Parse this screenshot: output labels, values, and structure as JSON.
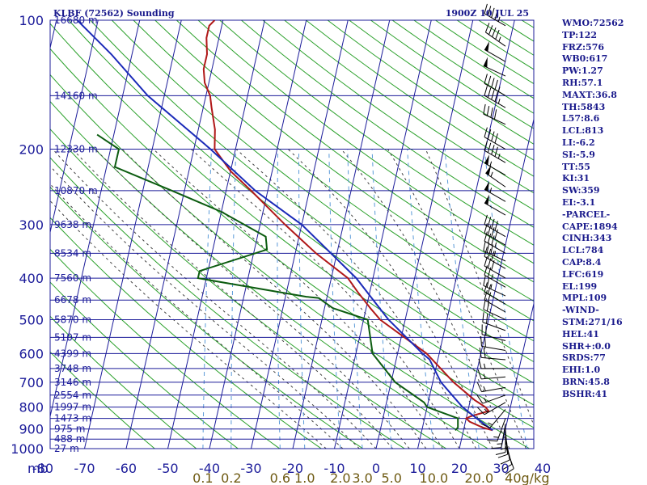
{
  "header": {
    "station": "KLBF (72562) Sounding",
    "time": "1900Z 10 JUL 25"
  },
  "chart_data": {
    "type": "skew-t",
    "title": "KLBF (72562) Sounding",
    "xlabel": "mb",
    "ylabel": "",
    "pressure_ticks": [
      "100",
      "200",
      "300",
      "400",
      "500",
      "600",
      "700",
      "800",
      "900",
      "1000"
    ],
    "pressure_values": [
      100,
      200,
      300,
      400,
      500,
      600,
      700,
      800,
      900,
      1000
    ],
    "temperature_ticks": [
      "-80",
      "-70",
      "-60",
      "-50",
      "-40",
      "-30",
      "-20",
      "-10",
      "0",
      "10",
      "20",
      "30",
      "40"
    ],
    "temperature_values": [
      -80,
      -70,
      -60,
      -50,
      -40,
      -30,
      -20,
      -10,
      0,
      10,
      20,
      30,
      40
    ],
    "mixing_ratio_labels": [
      "0.1",
      "0.2",
      "0.6",
      "1.0",
      "2.0",
      "3.0",
      "5.0",
      "10.0",
      "20.0",
      "40g/kg"
    ],
    "mixing_ratio_values": [
      0.1,
      0.2,
      0.6,
      1.0,
      2.0,
      3.0,
      5.0,
      10.0,
      20.0,
      40.0
    ],
    "height_labels": [
      {
        "p": 100,
        "label": "16680 m"
      },
      {
        "p": 150,
        "label": "14160 m"
      },
      {
        "p": 200,
        "label": "12330 m"
      },
      {
        "p": 250,
        "label": "10870 m"
      },
      {
        "p": 300,
        "label": "9638 m"
      },
      {
        "p": 350,
        "label": "8534 m"
      },
      {
        "p": 400,
        "label": "7560 m"
      },
      {
        "p": 450,
        "label": "6678 m"
      },
      {
        "p": 500,
        "label": "5870 m"
      },
      {
        "p": 550,
        "label": "5107 m"
      },
      {
        "p": 600,
        "label": "4399 m"
      },
      {
        "p": 650,
        "label": "3748 m"
      },
      {
        "p": 700,
        "label": "3146 m"
      },
      {
        "p": 750,
        "label": "2554 m"
      },
      {
        "p": 800,
        "label": "1997 m"
      },
      {
        "p": 850,
        "label": "1473 m"
      },
      {
        "p": 900,
        "label": "975 m"
      },
      {
        "p": 950,
        "label": "488 m"
      },
      {
        "p": 1000,
        "label": "27 m"
      }
    ],
    "series": [
      {
        "name": "",
        "color": "#b01818",
        "points": [
          {
            "p": 906,
            "t": 27
          },
          {
            "p": 893,
            "t": 24.5
          },
          {
            "p": 865,
            "t": 21
          },
          {
            "p": 850,
            "t": 20
          },
          {
            "p": 840,
            "t": 21
          },
          {
            "p": 817,
            "t": 25
          },
          {
            "p": 800,
            "t": 24
          },
          {
            "p": 770,
            "t": 21
          },
          {
            "p": 700,
            "t": 15
          },
          {
            "p": 600,
            "t": 7
          },
          {
            "p": 500,
            "t": -6
          },
          {
            "p": 470,
            "t": -9
          },
          {
            "p": 430,
            "t": -13
          },
          {
            "p": 400,
            "t": -16
          },
          {
            "p": 350,
            "t": -25
          },
          {
            "p": 300,
            "t": -34
          },
          {
            "p": 250,
            "t": -44
          },
          {
            "p": 225,
            "t": -50
          },
          {
            "p": 200,
            "t": -55
          },
          {
            "p": 180,
            "t": -56
          },
          {
            "p": 160,
            "t": -58
          },
          {
            "p": 150,
            "t": -59
          },
          {
            "p": 140,
            "t": -61
          },
          {
            "p": 130,
            "t": -62
          },
          {
            "p": 120,
            "t": -62
          },
          {
            "p": 110,
            "t": -63
          },
          {
            "p": 103,
            "t": -63
          },
          {
            "p": 100,
            "t": -62
          }
        ]
      },
      {
        "name": "",
        "color": "#0c5c10",
        "points": [
          {
            "p": 906,
            "t": 18
          },
          {
            "p": 893,
            "t": 18.5
          },
          {
            "p": 850,
            "t": 18
          },
          {
            "p": 800,
            "t": 10
          },
          {
            "p": 780,
            "t": 9
          },
          {
            "p": 700,
            "t": 1
          },
          {
            "p": 600,
            "t": -6
          },
          {
            "p": 500,
            "t": -9
          },
          {
            "p": 470,
            "t": -18
          },
          {
            "p": 445,
            "t": -22
          },
          {
            "p": 442,
            "t": -25
          },
          {
            "p": 400,
            "t": -52
          },
          {
            "p": 385,
            "t": -52
          },
          {
            "p": 343,
            "t": -37
          },
          {
            "p": 320,
            "t": -38
          },
          {
            "p": 280,
            "t": -50
          },
          {
            "p": 250,
            "t": -63
          },
          {
            "p": 220,
            "t": -78
          },
          {
            "p": 200,
            "t": -78
          },
          {
            "p": 185,
            "t": -84
          }
        ]
      },
      {
        "name": "",
        "color": "#1a2ab8",
        "points": [
          {
            "p": 906,
            "t": 27
          },
          {
            "p": 850,
            "t": 22.5
          },
          {
            "p": 800,
            "t": 18.5
          },
          {
            "p": 700,
            "t": 12
          },
          {
            "p": 619,
            "t": 8
          },
          {
            "p": 600,
            "t": 6
          },
          {
            "p": 500,
            "t": -4
          },
          {
            "p": 400,
            "t": -14
          },
          {
            "p": 300,
            "t": -30
          },
          {
            "p": 250,
            "t": -43
          },
          {
            "p": 200,
            "t": -56
          },
          {
            "p": 150,
            "t": -74
          },
          {
            "p": 120,
            "t": -85
          },
          {
            "p": 100,
            "t": -95
          }
        ]
      }
    ],
    "wind_barbs": [
      {
        "p": 103,
        "dir": 300,
        "spd": 45
      },
      {
        "p": 115,
        "dir": 305,
        "spd": 45
      },
      {
        "p": 125,
        "dir": 300,
        "spd": 50
      },
      {
        "p": 135,
        "dir": 295,
        "spd": 50
      },
      {
        "p": 150,
        "dir": 300,
        "spd": 45
      },
      {
        "p": 160,
        "dir": 300,
        "spd": 45
      },
      {
        "p": 175,
        "dir": 295,
        "spd": 40
      },
      {
        "p": 200,
        "dir": 300,
        "spd": 40
      },
      {
        "p": 215,
        "dir": 300,
        "spd": 45
      },
      {
        "p": 230,
        "dir": 300,
        "spd": 55
      },
      {
        "p": 245,
        "dir": 305,
        "spd": 55
      },
      {
        "p": 265,
        "dir": 300,
        "spd": 55
      },
      {
        "p": 285,
        "dir": 300,
        "spd": 50
      },
      {
        "p": 320,
        "dir": 300,
        "spd": 40
      },
      {
        "p": 335,
        "dir": 300,
        "spd": 40
      },
      {
        "p": 350,
        "dir": 300,
        "spd": 35
      },
      {
        "p": 365,
        "dir": 295,
        "spd": 35
      },
      {
        "p": 380,
        "dir": 300,
        "spd": 30
      },
      {
        "p": 400,
        "dir": 300,
        "spd": 30
      },
      {
        "p": 420,
        "dir": 300,
        "spd": 25
      },
      {
        "p": 440,
        "dir": 295,
        "spd": 25
      },
      {
        "p": 460,
        "dir": 300,
        "spd": 20
      },
      {
        "p": 480,
        "dir": 300,
        "spd": 20
      },
      {
        "p": 500,
        "dir": 295,
        "spd": 20
      },
      {
        "p": 530,
        "dir": 290,
        "spd": 20
      },
      {
        "p": 560,
        "dir": 285,
        "spd": 20
      },
      {
        "p": 590,
        "dir": 280,
        "spd": 20
      },
      {
        "p": 620,
        "dir": 275,
        "spd": 20
      },
      {
        "p": 650,
        "dir": 270,
        "spd": 15
      },
      {
        "p": 680,
        "dir": 265,
        "spd": 15
      },
      {
        "p": 720,
        "dir": 260,
        "spd": 15
      },
      {
        "p": 750,
        "dir": 250,
        "spd": 15
      },
      {
        "p": 780,
        "dir": 240,
        "spd": 15
      },
      {
        "p": 810,
        "dir": 220,
        "spd": 15
      },
      {
        "p": 850,
        "dir": 200,
        "spd": 15
      },
      {
        "p": 875,
        "dir": 190,
        "spd": 15
      },
      {
        "p": 895,
        "dir": 180,
        "spd": 15
      },
      {
        "p": 906,
        "dir": 175,
        "spd": 10
      },
      {
        "p": 935,
        "dir": 170,
        "spd": 10
      },
      {
        "p": 960,
        "dir": 165,
        "spd": 10
      },
      {
        "p": 985,
        "dir": 160,
        "spd": 10
      }
    ]
  },
  "indices": [
    "WMO:72562",
    "TP:122",
    "FRZ:576",
    "WB0:617",
    "PW:1.27",
    "RH:57.1",
    "MAXT:36.8",
    "TH:5843",
    "L57:8.6",
    "LCL:813",
    "LI:-6.2",
    "SI:-5.9",
    "TT:55",
    "KI:31",
    "SW:359",
    "EI:-3.1",
    "-PARCEL-",
    "CAPE:1894",
    "CINH:343",
    "LCL:784",
    "CAP:8.4",
    "LFC:619",
    "EL:199",
    "MPL:109",
    "-WIND-",
    "STM:271/16",
    "HEL:41",
    "SHR+:0.0",
    "SRDS:77",
    "EHI:1.0",
    "BRN:45.8",
    "BSHR:41"
  ],
  "colors": {
    "frame": "#1c1c9a",
    "dry_adiabat": "#2aa02a",
    "moist_adiabat": "#404040",
    "mixing_ratio": "#5a9ad8",
    "temperature": "#b01818",
    "dewpoint": "#0c5c10",
    "parcel": "#1a2ab8",
    "barb": "#000000"
  }
}
